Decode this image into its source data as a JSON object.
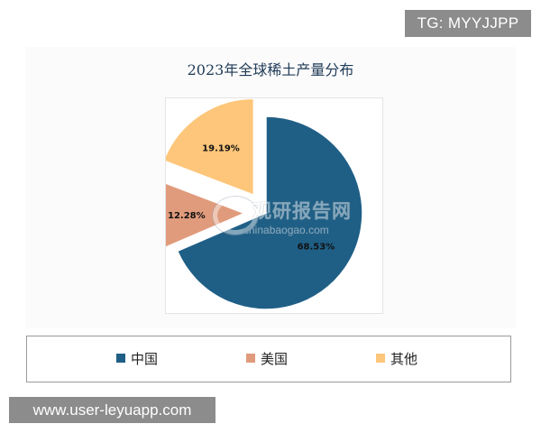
{
  "badges": {
    "tg": "TG: MYYJJPP",
    "url": "www.user-leyuapp.com"
  },
  "watermark": {
    "text": "观研报告网",
    "sub": "chinabaogao.com"
  },
  "chart_data": {
    "type": "pie",
    "title": "2023年全球稀土产量分布",
    "slices": [
      {
        "label": "中国",
        "value": 68.53,
        "display": "68.53%",
        "color": "#1f5f86",
        "exploded": false
      },
      {
        "label": "美国",
        "value": 12.28,
        "display": "12.28%",
        "color": "#e09b7c",
        "exploded": true
      },
      {
        "label": "其他",
        "value": 19.19,
        "display": "19.19%",
        "color": "#fdc67a",
        "exploded": true
      }
    ],
    "legend_position": "bottom"
  }
}
